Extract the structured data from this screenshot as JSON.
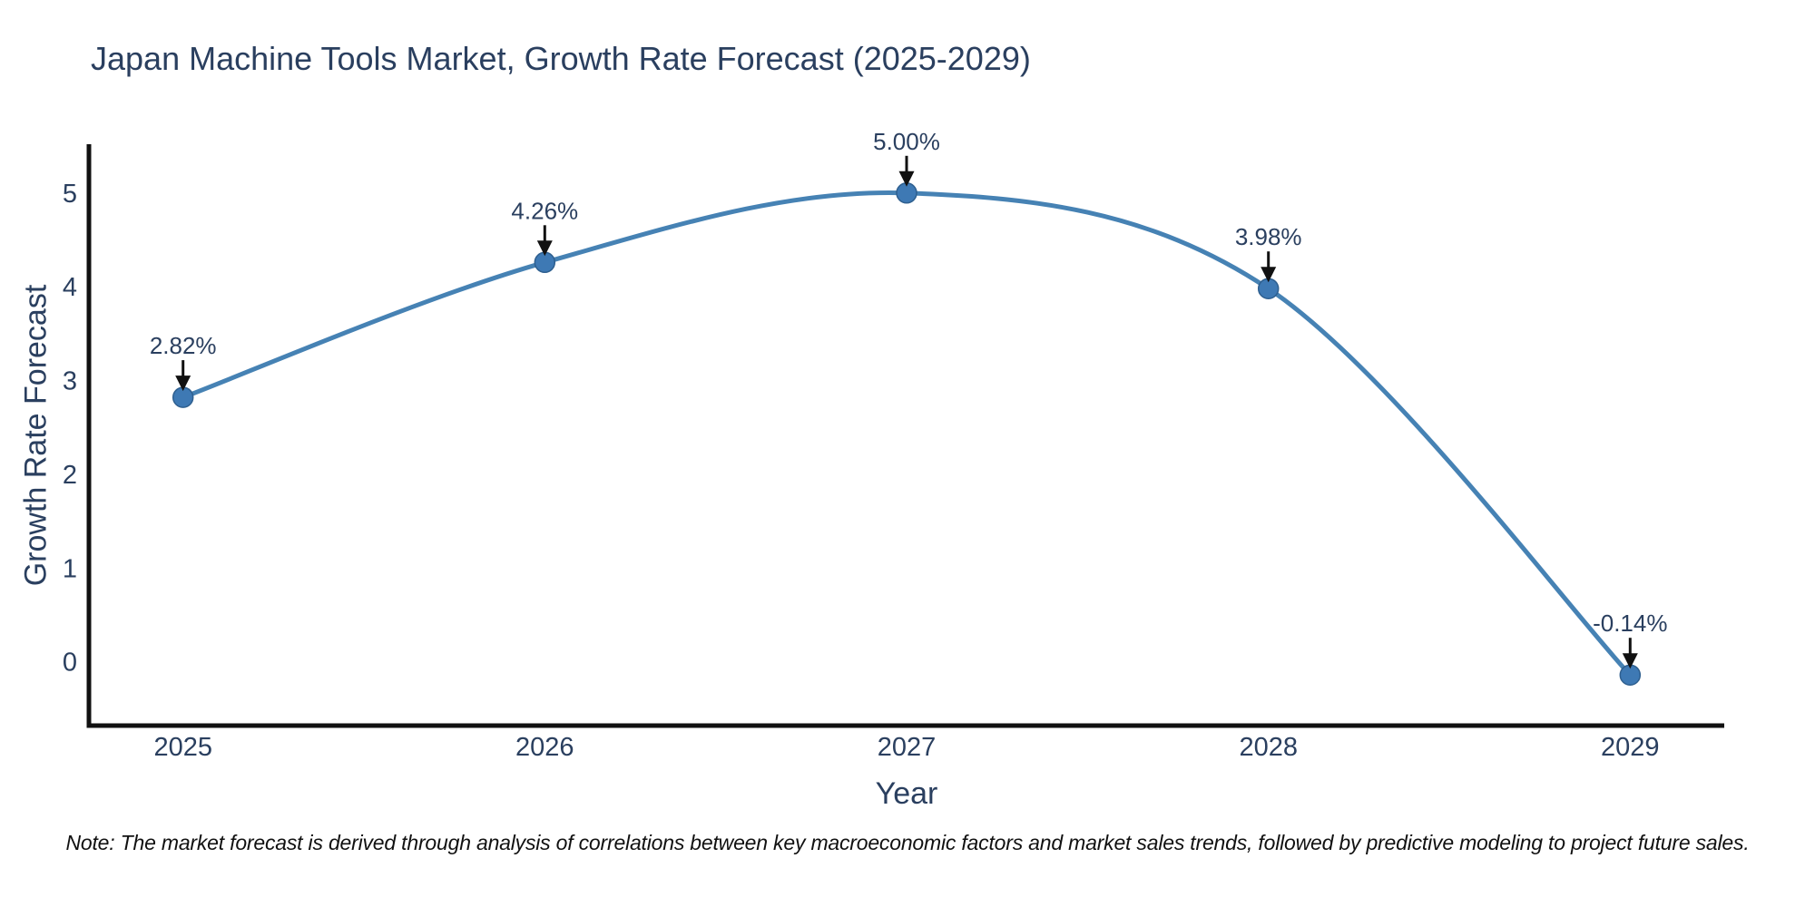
{
  "page": {
    "background": "#ffffff"
  },
  "chart_data": {
    "type": "line",
    "title": "Japan Machine Tools Market, Growth Rate Forecast (2025-2029)",
    "xlabel": "Year",
    "ylabel": "Growth Rate Forecast",
    "categories": [
      2025,
      2026,
      2027,
      2028,
      2029
    ],
    "series": [
      {
        "name": "Growth Rate Forecast",
        "values": [
          2.82,
          4.26,
          5.0,
          3.98,
          -0.14
        ],
        "point_labels": [
          "2.82%",
          "4.26%",
          "5.00%",
          "3.98%",
          "-0.14%"
        ]
      }
    ],
    "y_ticks": [
      0,
      1,
      2,
      3,
      4,
      5
    ],
    "ylim": [
      -0.68,
      5.52
    ],
    "xlim": [
      2024.74,
      2029.26
    ],
    "grid": false,
    "legend": "none",
    "line_shape": "spline",
    "colors": {
      "line": "#4682b4",
      "marker_fill": "#3e79b4",
      "marker_edge": "#2e5f8f",
      "axis_line": "#111111",
      "arrow": "#111111",
      "text": "#2a3f5f",
      "note_text": "#111111"
    },
    "note": "Note: The market forecast is derived through analysis of correlations between key macroeconomic factors and market sales trends, followed by predictive modeling to project future sales."
  }
}
